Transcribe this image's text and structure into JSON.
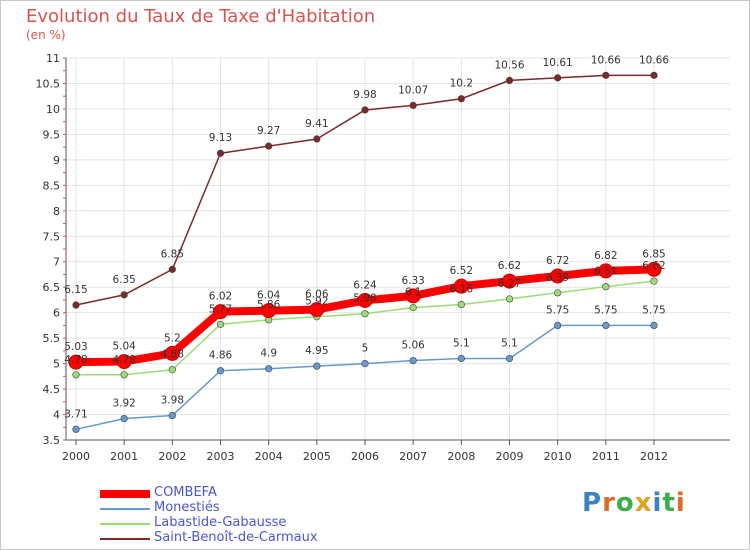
{
  "title": "Evolution du Taux de Taxe d'Habitation",
  "unit_label": "(en %)",
  "brand": "Proxiti",
  "chart_data": {
    "type": "line",
    "title": "Evolution du Taux de Taxe d'Habitation",
    "ylabel": "(en %)",
    "x": [
      "2000",
      "2001",
      "2002",
      "2003",
      "2004",
      "2005",
      "2006",
      "2007",
      "2008",
      "2009",
      "2010",
      "2011",
      "2012"
    ],
    "ylim": [
      3.5,
      11
    ],
    "yticks": [
      "3.5",
      "4",
      "4.5",
      "5",
      "5.5",
      "6",
      "6.5",
      "7",
      "7.5",
      "8",
      "8.5",
      "9",
      "9.5",
      "10",
      "10.5",
      "11"
    ],
    "legend_position": "bottom-left",
    "series": [
      {
        "name": "COMBEFA",
        "color": "#ff0000",
        "values": [
          5.03,
          5.04,
          5.2,
          6.02,
          6.04,
          6.06,
          6.24,
          6.33,
          6.52,
          6.62,
          6.72,
          6.82,
          6.85
        ],
        "labels": [
          "5.03",
          "5.04",
          "5.2",
          "6.02",
          "6.04",
          "6.06",
          "6.24",
          "6.33",
          "6.52",
          "6.62",
          "6.72",
          "6.82",
          "6.85"
        ]
      },
      {
        "name": "Monestiés",
        "color": "#6699cc",
        "values": [
          3.71,
          3.92,
          3.98,
          4.86,
          4.9,
          4.95,
          5.0,
          5.06,
          5.1,
          5.1,
          5.75,
          5.75,
          5.75
        ],
        "labels": [
          "3.71",
          "3.92",
          "3.98",
          "4.86",
          "4.9",
          "4.95",
          "5",
          "5.06",
          "5.1",
          "5.1",
          "5.75",
          "5.75",
          "5.75"
        ]
      },
      {
        "name": "Labastide-Gabausse",
        "color": "#99dd77",
        "values": [
          4.78,
          4.78,
          4.88,
          5.77,
          5.86,
          5.92,
          5.98,
          6.1,
          6.16,
          6.27,
          6.39,
          6.51,
          6.62
        ],
        "labels": [
          "4.78",
          "4.78",
          "4.88",
          "5.77",
          "5.86",
          "5.92",
          "5.98",
          "6.1",
          "6.16",
          "6.27",
          "6.39",
          "6.51",
          "6.62"
        ]
      },
      {
        "name": "Saint-Benoît-de-Carmaux",
        "color": "#7a2a2a",
        "values": [
          6.15,
          6.35,
          6.85,
          9.13,
          9.27,
          9.41,
          9.98,
          10.07,
          10.2,
          10.56,
          10.61,
          10.66,
          10.66
        ],
        "labels": [
          "6.15",
          "6.35",
          "6.85",
          "9.13",
          "9.27",
          "9.41",
          "9.98",
          "10.07",
          "10.2",
          "10.56",
          "10.61",
          "10.66",
          "10.66"
        ]
      }
    ]
  }
}
